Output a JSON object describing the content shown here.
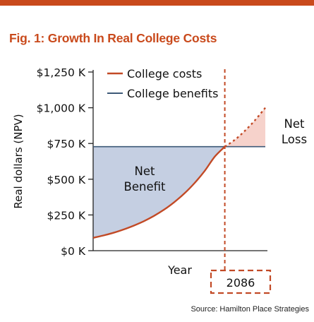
{
  "colors": {
    "accent": "#c94a1c",
    "cost_line": "#c24a26",
    "benefit_line": "#3d5a78",
    "benefit_fill": "#c5cfe2",
    "loss_fill": "#f6d2cb",
    "axis": "#222222"
  },
  "figure": {
    "title": "Fig. 1: Growth In Real College Costs",
    "source": "Source: Hamilton Place Strategies"
  },
  "chart_data": {
    "type": "line",
    "title": "Fig. 1: Growth In Real College Costs",
    "xlabel": "Year",
    "ylabel": "Real dollars (NPV)",
    "ylim": [
      0,
      1250
    ],
    "y_ticks": [
      {
        "value": 0,
        "label": "$0 K"
      },
      {
        "value": 250,
        "label": "$250 K"
      },
      {
        "value": 500,
        "label": "$500 K"
      },
      {
        "value": 750,
        "label": "$750 K"
      },
      {
        "value": 1000,
        "label": "$1,000 K"
      },
      {
        "value": 1250,
        "label": "$1,250 K"
      }
    ],
    "crossover_year": "2086",
    "series": [
      {
        "name": "College costs",
        "style": "solid then dotted past crossover",
        "values": [
          90,
          106,
          125,
          148,
          175,
          206,
          243,
          287,
          339,
          400,
          472,
          557,
          657,
          728,
          776,
          840,
          914,
          1000
        ]
      },
      {
        "name": "College benefits",
        "style": "solid",
        "values": [
          728,
          728,
          728,
          728,
          728,
          728,
          728,
          728,
          728,
          728,
          728,
          728,
          728,
          728,
          728,
          728,
          728,
          728
        ]
      }
    ],
    "annotations": [
      {
        "text": "Net Benefit",
        "lines": [
          "Net",
          "Benefit"
        ]
      },
      {
        "text": "Net Loss",
        "lines": [
          "Net",
          "Loss"
        ]
      }
    ],
    "legend": {
      "placement": "top-left",
      "grid": false
    }
  }
}
